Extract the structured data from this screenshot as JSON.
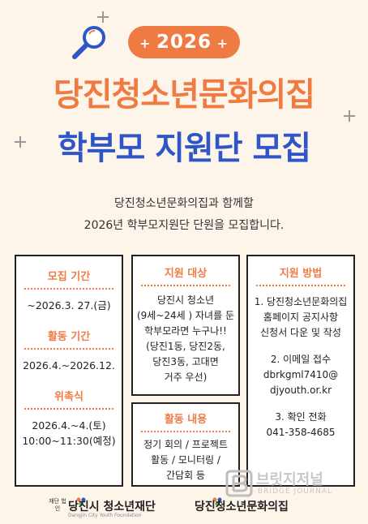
{
  "year": "2026",
  "title_line1": "당진청소년문화의집",
  "title_line2": "학부모 지원단 모집",
  "intro": {
    "line1": "당진청소년문화의집과 함께할",
    "line2": "2026년 학부모지원단 단원을 모집합니다."
  },
  "left_card": {
    "recruit_head": "모집 기간",
    "recruit_value": "~2026.3. 27.(금)",
    "activity_head": "활동 기간",
    "activity_value": "2026.4.~2026.12.",
    "ceremony_head": "위촉식",
    "ceremony_date": "2026.4.~4.(토)",
    "ceremony_time": "10:00~11:30(예정)"
  },
  "target_card": {
    "head": "지원 대상",
    "lines": [
      "당진시 청소년",
      "(9세~24세 ) 자녀를 둔",
      "학부모라면 누구나!!",
      "(당진1동, 당진2동,",
      "당진3동, 고대면",
      "거주 우선)"
    ]
  },
  "content_card": {
    "head": "활동 내용",
    "lines": [
      "정기 회의 / 프로젝트",
      "활동 / 모니터링 /",
      "간담회 등"
    ]
  },
  "method_card": {
    "head": "지원 방법",
    "step1": [
      "1. 당진청소년문화의집",
      "홈페이지 공지사항",
      "신청서 다운 및 작성"
    ],
    "step2": [
      "2. 이메일 접수",
      "dbrkgml7410@",
      "djyouth.or.kr"
    ],
    "step3": [
      "3. 확인 전화",
      "041-358-4685"
    ]
  },
  "footer": {
    "foundation_small": "재단 법인",
    "foundation_name": "당진시 청소년재단",
    "foundation_en": "Dangjin City Youth Foundation",
    "center_name": "당진청소년문화의집"
  },
  "watermark": {
    "ko": "브릿지저널",
    "en": "BRIDGE JOURNAL"
  },
  "colors": {
    "orange": "#ef7b43",
    "blue": "#2e56c9",
    "background": "#fdf5ea"
  }
}
